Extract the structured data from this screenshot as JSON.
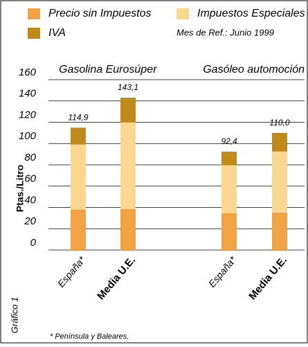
{
  "chart_data": {
    "type": "stacked_bar",
    "legend_note": "Mes de Ref.: Junio 1999",
    "y_label": "Ptas./Litro",
    "groups": [
      "Gasolina Eurosúper",
      "Gasóleo automoción"
    ],
    "categories": [
      "España*",
      "Media U.E.",
      "España*",
      "Media U.E."
    ],
    "series": [
      {
        "name": "Precio sin Impuestos",
        "color": "#f2a444",
        "values": [
          38.0,
          38.5,
          34.5,
          35.2
        ]
      },
      {
        "name": "Impuestos Especiales",
        "color": "#fbd791",
        "values": [
          61.1,
          81.4,
          45.1,
          57.3
        ]
      },
      {
        "name": "IVA",
        "color": "#c08a1a",
        "values": [
          15.8,
          23.2,
          12.8,
          17.5
        ]
      }
    ],
    "totals": [
      114.9,
      143.1,
      92.4,
      110.0
    ],
    "total_labels": [
      "114,9",
      "143,1",
      "92,4",
      "110,0"
    ],
    "ylim": [
      0,
      160
    ],
    "yticks": [
      0,
      20,
      40,
      60,
      80,
      100,
      120,
      140,
      160
    ],
    "grid": true,
    "figure_label": "Gráfico 1",
    "footnote": "* Península y Baleares."
  }
}
